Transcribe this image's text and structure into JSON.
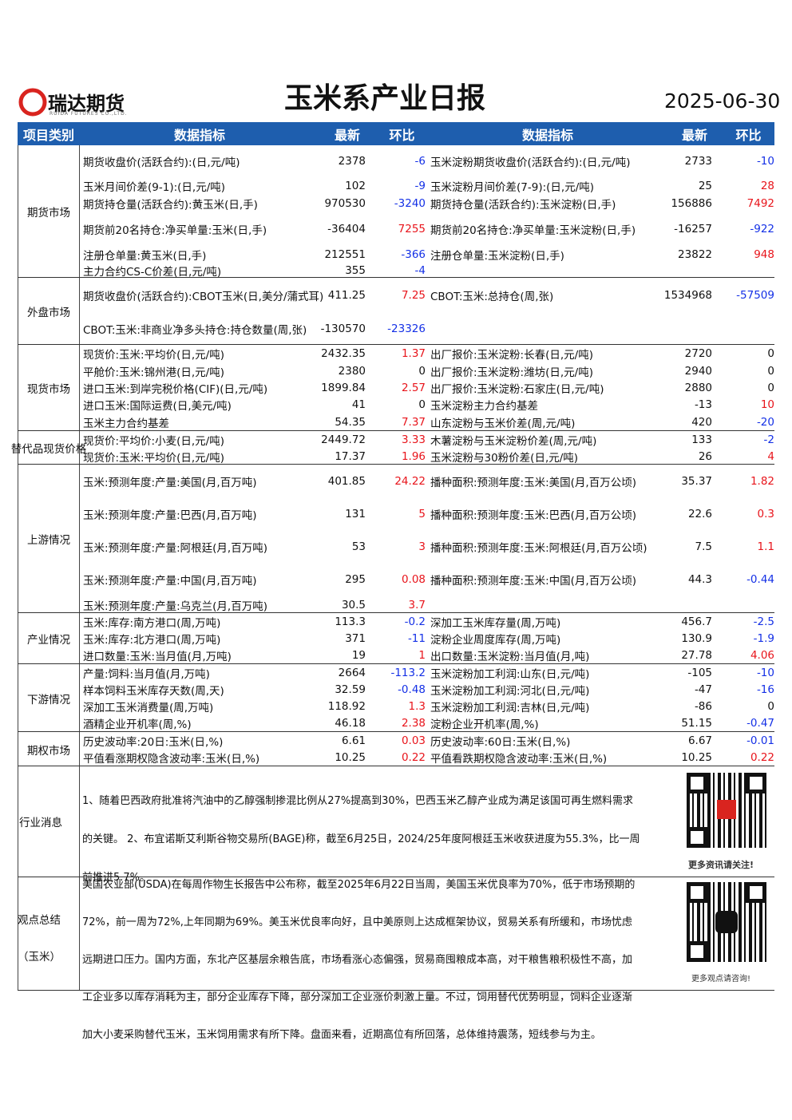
{
  "header": {
    "logo_name": "瑞达期货",
    "logo_sub": "RUIDA FUTURES CO.,LTD.",
    "title": "玉米系产业日报",
    "date": "2025-06-30"
  },
  "table": {
    "columns": [
      "项目类别",
      "数据指标",
      "最新",
      "环比",
      "数据指标",
      "最新",
      "环比"
    ],
    "sections": [
      {
        "category": "期货市场",
        "rows": [
          [
            "期货收盘价(活跃合约):(日,元/吨)",
            2378,
            -6,
            "玉米淀粉期货收盘价(活跃合约):(日,元/吨)",
            2733,
            -10
          ],
          [
            "玉米月间价差(9-1):(日,元/吨)",
            102,
            -9,
            "玉米淀粉月间价差(7-9):(日,元/吨)",
            25,
            28
          ],
          [
            "期货持仓量(活跃合约):黄玉米(日,手)",
            970530,
            -3240,
            "期货持仓量(活跃合约):玉米淀粉(日,手)",
            156886,
            7492
          ],
          [
            "期货前20名持仓:净买单量:玉米(日,手)",
            -36404,
            7255,
            "期货前20名持仓:净买单量:玉米淀粉(日,手)",
            -16257,
            -922
          ],
          [
            "注册仓单量:黄玉米(日,手)",
            212551,
            -366,
            "注册仓单量:玉米淀粉(日,手)",
            23822,
            948
          ],
          [
            "主力合约CS-C价差(日,元/吨)",
            355,
            -4
          ]
        ]
      },
      {
        "category": "外盘市场",
        "rows": [
          [
            "期货收盘价(活跃合约):CBOT玉米(日,美分/蒲式耳)",
            411.25,
            7.25,
            "CBOT:玉米:总持仓(周,张)",
            1534968,
            -57509
          ],
          [
            "CBOT:玉米:非商业净多头持仓:持仓数量(周,张)",
            -130570,
            -23326
          ]
        ]
      },
      {
        "category": "现货市场",
        "rows": [
          [
            "现货价:玉米:平均价(日,元/吨)",
            2432.35,
            1.37,
            "出厂报价:玉米淀粉:长春(日,元/吨)",
            2720,
            0
          ],
          [
            "平舱价:玉米:锦州港(日,元/吨)",
            2380,
            0,
            "出厂报价:玉米淀粉:潍坊(日,元/吨)",
            2940,
            0
          ],
          [
            "进口玉米:到岸完税价格(CIF)(日,元/吨)",
            1899.84,
            2.57,
            "出厂报价:玉米淀粉:石家庄(日,元/吨)",
            2880,
            0
          ],
          [
            "进口玉米:国际运费(日,美元/吨)",
            41,
            0,
            "玉米淀粉主力合约基差",
            -13,
            10
          ],
          [
            "玉米主力合约基差",
            54.35,
            7.37,
            "山东淀粉与玉米价差(周,元/吨)",
            420,
            -20
          ]
        ]
      },
      {
        "category": "替代品现货价格",
        "rows": [
          [
            "现货价:平均价:小麦(日,元/吨)",
            2449.72,
            3.33,
            "木薯淀粉与玉米淀粉价差(周,元/吨)",
            133,
            -2
          ],
          [
            "现货价:玉米:平均价(日,元/吨)",
            17.37,
            1.96,
            "玉米淀粉与30粉价差(日,元/吨)",
            26,
            4
          ]
        ]
      },
      {
        "category": "上游情况",
        "rows": [
          [
            "玉米:预测年度:产量:美国(月,百万吨)",
            401.85,
            24.22,
            "播种面积:预测年度:玉米:美国(月,百万公顷)",
            35.37,
            1.82
          ],
          [
            "玉米:预测年度:产量:巴西(月,百万吨)",
            131,
            5,
            "播种面积:预测年度:玉米:巴西(月,百万公顷)",
            22.6,
            0.3
          ],
          [
            "玉米:预测年度:产量:阿根廷(月,百万吨)",
            53,
            3,
            "播种面积:预测年度:玉米:阿根廷(月,百万公顷)",
            7.5,
            1.1
          ],
          [
            "玉米:预测年度:产量:中国(月,百万吨)",
            295,
            0.08,
            "播种面积:预测年度:玉米:中国(月,百万公顷)",
            44.3,
            -0.44
          ],
          [
            "玉米:预测年度:产量:乌克兰(月,百万吨)",
            30.5,
            3.7
          ]
        ]
      },
      {
        "category": "产业情况",
        "rows": [
          [
            "玉米:库存:南方港口(周,万吨)",
            113.3,
            -0.2,
            "深加工玉米库存量(周,万吨)",
            456.7,
            -2.5
          ],
          [
            "玉米:库存:北方港口(周,万吨)",
            371,
            -11,
            "淀粉企业周度库存(周,万吨)",
            130.9,
            -1.9
          ],
          [
            "进口数量:玉米:当月值(月,万吨)",
            19,
            1,
            "出口数量:玉米淀粉:当月值(月,吨)",
            27.78,
            4.06
          ]
        ]
      },
      {
        "category": "下游情况",
        "rows": [
          [
            "产量:饲料:当月值(月,万吨)",
            2664,
            -113.2,
            "玉米淀粉加工利润:山东(日,元/吨)",
            -105,
            -10
          ],
          [
            "样本饲料玉米库存天数(周,天)",
            32.59,
            -0.48,
            "玉米淀粉加工利润:河北(日,元/吨)",
            -47,
            -16
          ],
          [
            "深加工玉米消费量(周,万吨)",
            118.92,
            1.3,
            "玉米淀粉加工利润:吉林(日,元/吨)",
            -86,
            0
          ],
          [
            "酒精企业开机率(周,%)",
            46.18,
            2.38,
            "淀粉企业开机率(周,%)",
            51.15,
            -0.47
          ]
        ]
      },
      {
        "category": "期权市场",
        "rows": [
          [
            "历史波动率:20日:玉米(日,%)",
            6.61,
            0.03,
            "历史波动率:60日:玉米(日,%)",
            6.67,
            -0.01
          ],
          [
            "平值看涨期权隐含波动率:玉米(日,%)",
            10.25,
            0.22,
            "平值看跌期权隐含波动率:玉米(日,%)",
            10.25,
            0.22
          ]
        ]
      }
    ]
  },
  "news": {
    "category": "行业消息",
    "text": "1、随着巴西政府批准将汽油中的乙醇强制掺混比例从27%提高到30%，巴西玉米乙醇产业成为满足该国可再生燃料需求的关键。 2、布宜诺斯艾利斯谷物交易所(BAGE)称，截至6月25日，2024/25年度阿根廷玉米收获进度为55.3%，比一周前推进5.7%。"
  },
  "view": {
    "category": "观点总结（玉米）",
    "text": "美国农业部(USDA)在每周作物生长报告中公布称，截至2025年6月22日当周，美国玉米优良率为70%，低于市场预期的72%，前一周为72%,上年同期为69%。美玉米优良率向好，且中美原则上达成框架协议，贸易关系有所缓和，市场忧虑远期进口压力。国内方面，东北产区基层余粮告底，市场看涨心态偏强，贸易商囤粮成本高，对干粮售粮积极性不高，加工企业多以库存消耗为主，部分企业库存下降，部分深加工企业涨价刺激上量。不过，饲用替代优势明显，饲料企业逐渐加大小麦采购替代玉米，玉米饲用需求有所下降。盘面来看，近期高位有所回落，总体维持震荡，短线参与为主。"
  },
  "qr": {
    "caption1": "更多资讯请关注!",
    "caption2": "更多观点请咨询!"
  }
}
